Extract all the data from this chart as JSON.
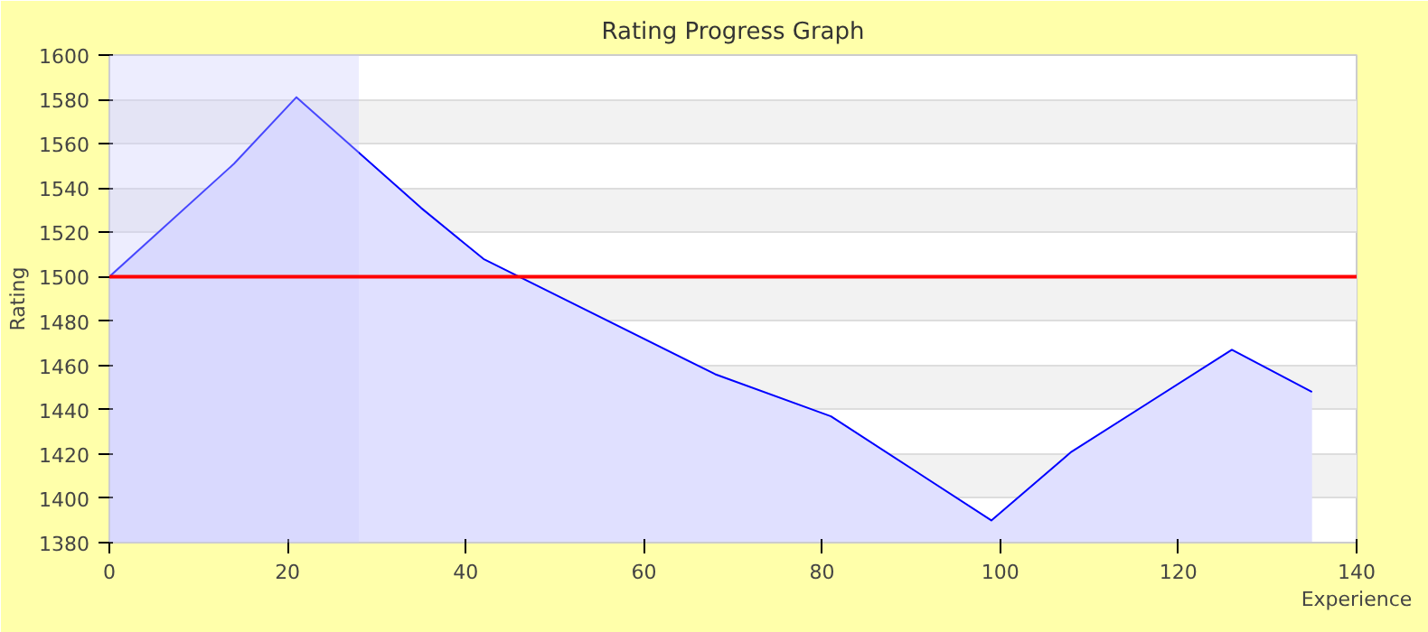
{
  "chart_data": {
    "type": "area",
    "title": "Rating Progress Graph",
    "xlabel": "Experience",
    "ylabel": "Rating",
    "x": [
      0,
      14,
      21,
      35,
      42,
      68,
      81,
      99,
      108,
      126,
      135
    ],
    "series": [
      {
        "color": "#0000ff",
        "values": [
          1500,
          1551,
          1581,
          1531,
          1508,
          1456,
          1437,
          1390,
          1421,
          1467,
          1448
        ]
      }
    ],
    "xlim": [
      0,
      140
    ],
    "xticks": [
      0,
      20,
      40,
      60,
      80,
      100,
      120,
      140
    ],
    "ylim": [
      1380,
      1600
    ],
    "yticks": [
      1380,
      1400,
      1420,
      1440,
      1460,
      1480,
      1500,
      1520,
      1540,
      1560,
      1580,
      1600
    ],
    "grid": "y",
    "ref_lines": [
      {
        "axis": "y",
        "value": 1500,
        "color": "#ff0000"
      }
    ],
    "bands": [
      {
        "axis": "x",
        "from": 0,
        "to": 28,
        "color": "#ccccfc"
      }
    ]
  }
}
